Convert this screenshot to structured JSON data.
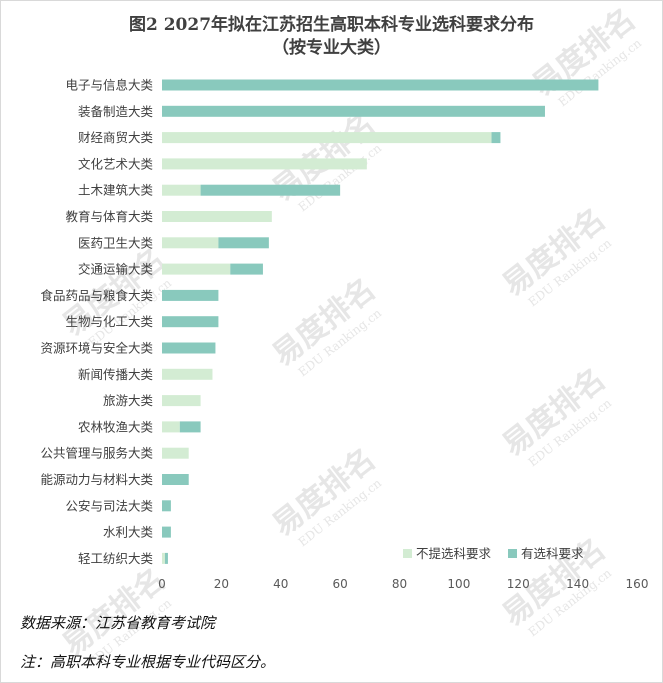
{
  "chart_data": {
    "type": "bar",
    "orientation": "horizontal",
    "stacked": true,
    "title": "图2  2027年拟在江苏招生高职本科专业选科要求分布",
    "subtitle": "（按专业大类）",
    "categories": [
      "电子与信息大类",
      "装备制造大类",
      "财经商贸大类",
      "文化艺术大类",
      "土木建筑大类",
      "教育与体育大类",
      "医药卫生大类",
      "交通运输大类",
      "食品药品与粮食大类",
      "生物与化工大类",
      "资源环境与安全大类",
      "新闻传播大类",
      "旅游大类",
      "农林牧渔大类",
      "公共管理与服务大类",
      "能源动力与材料大类",
      "公安与司法大类",
      "水利大类",
      "轻工纺织大类"
    ],
    "series": [
      {
        "name": "不提选科要求",
        "color": "#d3ecd3",
        "values": [
          0,
          0,
          111,
          69,
          13,
          37,
          19,
          23,
          0,
          0,
          0,
          17,
          13,
          6,
          9,
          0,
          0,
          0,
          1
        ]
      },
      {
        "name": "有选科要求",
        "color": "#89c9bd",
        "values": [
          147,
          129,
          3,
          0,
          47,
          0,
          17,
          11,
          19,
          19,
          18,
          0,
          0,
          7,
          0,
          9,
          3,
          3,
          1
        ]
      }
    ],
    "xlim": [
      0,
      160
    ],
    "xticks": [
      "0",
      "20",
      "40",
      "60",
      "80",
      "100",
      "120",
      "140",
      "160"
    ],
    "grid": false,
    "legend_position": "bottom-right"
  },
  "notes": {
    "source": "数据来源：江苏省教育考试院",
    "footnote": "注：高职本科专业根据专业代码区分。"
  },
  "watermark": {
    "text": "易度排名",
    "subtext": "EDU Ranking.cn",
    "color": "#e6e6e6"
  }
}
